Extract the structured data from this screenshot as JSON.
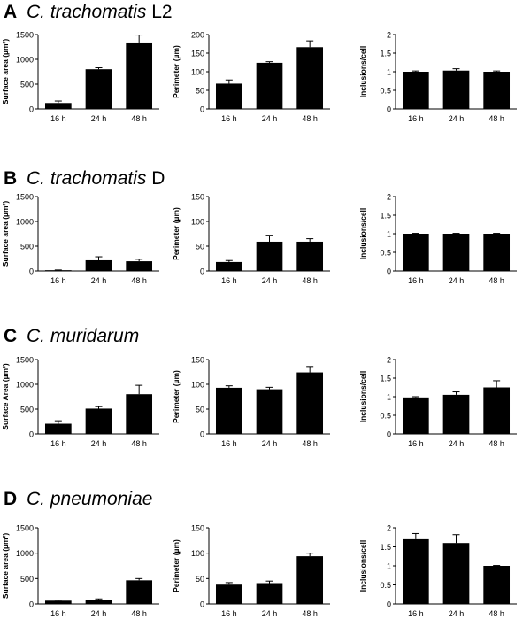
{
  "panels": [
    {
      "letter": "A",
      "title_italic": "C. trachomatis",
      "title_suffix": " L2"
    },
    {
      "letter": "B",
      "title_italic": "C. trachomatis",
      "title_suffix": " D"
    },
    {
      "letter": "C",
      "title_italic": "C. muridarum",
      "title_suffix": ""
    },
    {
      "letter": "D",
      "title_italic": "C. pneumoniae",
      "title_suffix": ""
    }
  ],
  "colors": {
    "bar": "#000000",
    "axis": "#000000",
    "background": "#ffffff"
  },
  "chart_data": [
    {
      "panel": "A",
      "type": "bar",
      "categories": [
        "16 h",
        "24 h",
        "48 h"
      ],
      "values": [
        120,
        800,
        1340
      ],
      "errors": [
        40,
        30,
        150
      ],
      "ylabel": "Surface area (µm²)",
      "ylim": [
        0,
        1500
      ],
      "yticks": [
        0,
        500,
        1000,
        1500
      ],
      "tick_labels": [
        "0",
        "500",
        "1000",
        "1500"
      ]
    },
    {
      "panel": "A",
      "type": "bar",
      "categories": [
        "16 h",
        "24 h",
        "48 h"
      ],
      "values": [
        68,
        124,
        166
      ],
      "errors": [
        10,
        3,
        17
      ],
      "ylabel": "Perimeter (µm)",
      "ylim": [
        0,
        200
      ],
      "yticks": [
        0,
        50,
        100,
        150,
        200
      ],
      "tick_labels": [
        "0",
        "50",
        "100",
        "150",
        "200"
      ]
    },
    {
      "panel": "A",
      "type": "bar",
      "categories": [
        "16 h",
        "24 h",
        "48 h"
      ],
      "values": [
        1.0,
        1.03,
        1.0
      ],
      "errors": [
        0.02,
        0.05,
        0.02
      ],
      "ylabel": "Inclusions/cell",
      "ylim": [
        0,
        2
      ],
      "yticks": [
        0,
        0.5,
        1,
        1.5,
        2
      ],
      "tick_labels": [
        "0",
        "0.5",
        "1",
        "1.5",
        "2"
      ]
    },
    {
      "panel": "B",
      "type": "bar",
      "categories": [
        "16 h",
        "24 h",
        "48 h"
      ],
      "values": [
        15,
        215,
        195
      ],
      "errors": [
        5,
        70,
        40
      ],
      "ylabel": "Surface area (µm²)",
      "ylim": [
        0,
        1500
      ],
      "yticks": [
        0,
        500,
        1000,
        1500
      ],
      "tick_labels": [
        "0",
        "500",
        "1000",
        "1500"
      ]
    },
    {
      "panel": "B",
      "type": "bar",
      "categories": [
        "16 h",
        "24 h",
        "48 h"
      ],
      "values": [
        18,
        59,
        59
      ],
      "errors": [
        3,
        13,
        6
      ],
      "ylabel": "Perimeter (µm)",
      "ylim": [
        0,
        150
      ],
      "yticks": [
        0,
        50,
        100,
        150
      ],
      "tick_labels": [
        "0",
        "50",
        "100",
        "150"
      ]
    },
    {
      "panel": "B",
      "type": "bar",
      "categories": [
        "16 h",
        "24 h",
        "48 h"
      ],
      "values": [
        1.0,
        1.0,
        1.0
      ],
      "errors": [
        0.01,
        0.01,
        0.01
      ],
      "ylabel": "Inclusions/cell",
      "ylim": [
        0,
        2
      ],
      "yticks": [
        0,
        0.5,
        1,
        1.5,
        2
      ],
      "tick_labels": [
        "0",
        "0.5",
        "1",
        "1.5",
        "2"
      ]
    },
    {
      "panel": "C",
      "type": "bar",
      "categories": [
        "16 h",
        "24 h",
        "48 h"
      ],
      "values": [
        205,
        510,
        800
      ],
      "errors": [
        60,
        40,
        180
      ],
      "ylabel": "Surface Area (µm²)",
      "ylim": [
        0,
        1500
      ],
      "yticks": [
        0,
        500,
        1000,
        1500
      ],
      "tick_labels": [
        "0",
        "500",
        "1000",
        "1500"
      ]
    },
    {
      "panel": "C",
      "type": "bar",
      "categories": [
        "16 h",
        "24 h",
        "48 h"
      ],
      "values": [
        93,
        90,
        124
      ],
      "errors": [
        4,
        4,
        12
      ],
      "ylabel": "Perimeter (µm)",
      "ylim": [
        0,
        150
      ],
      "yticks": [
        0,
        50,
        100,
        150
      ],
      "tick_labels": [
        "0",
        "50",
        "100",
        "150"
      ]
    },
    {
      "panel": "C",
      "type": "bar",
      "categories": [
        "16 h",
        "24 h",
        "48 h"
      ],
      "values": [
        0.98,
        1.05,
        1.25
      ],
      "errors": [
        0.02,
        0.08,
        0.18
      ],
      "ylabel": "Inclusions/cell",
      "ylim": [
        0,
        2
      ],
      "yticks": [
        0,
        0.5,
        1,
        1.5,
        2
      ],
      "tick_labels": [
        "0",
        "0.5",
        "1",
        "1.5",
        "2"
      ]
    },
    {
      "panel": "D",
      "type": "bar",
      "categories": [
        "16 h",
        "24 h",
        "48 h"
      ],
      "values": [
        65,
        85,
        465
      ],
      "errors": [
        10,
        15,
        35
      ],
      "ylabel": "Surface area (µm²)",
      "ylim": [
        0,
        1500
      ],
      "yticks": [
        0,
        500,
        1000,
        1500
      ],
      "tick_labels": [
        "0",
        "500",
        "1000",
        "1500"
      ]
    },
    {
      "panel": "D",
      "type": "bar",
      "categories": [
        "16 h",
        "24 h",
        "48 h"
      ],
      "values": [
        38,
        41,
        94
      ],
      "errors": [
        4,
        4,
        6
      ],
      "ylabel": "Perimeter (µm)",
      "ylim": [
        0,
        150
      ],
      "yticks": [
        0,
        50,
        100,
        150
      ],
      "tick_labels": [
        "0",
        "50",
        "100",
        "150"
      ]
    },
    {
      "panel": "D",
      "type": "bar",
      "categories": [
        "16 h",
        "24 h",
        "48 h"
      ],
      "values": [
        1.7,
        1.6,
        1.0
      ],
      "errors": [
        0.15,
        0.22,
        0.01
      ],
      "ylabel": "Inclusions/cell",
      "ylim": [
        0,
        2
      ],
      "yticks": [
        0,
        0.5,
        1,
        1.5,
        2
      ],
      "tick_labels": [
        "0",
        "0.5",
        "1",
        "1.5",
        "2"
      ]
    }
  ]
}
